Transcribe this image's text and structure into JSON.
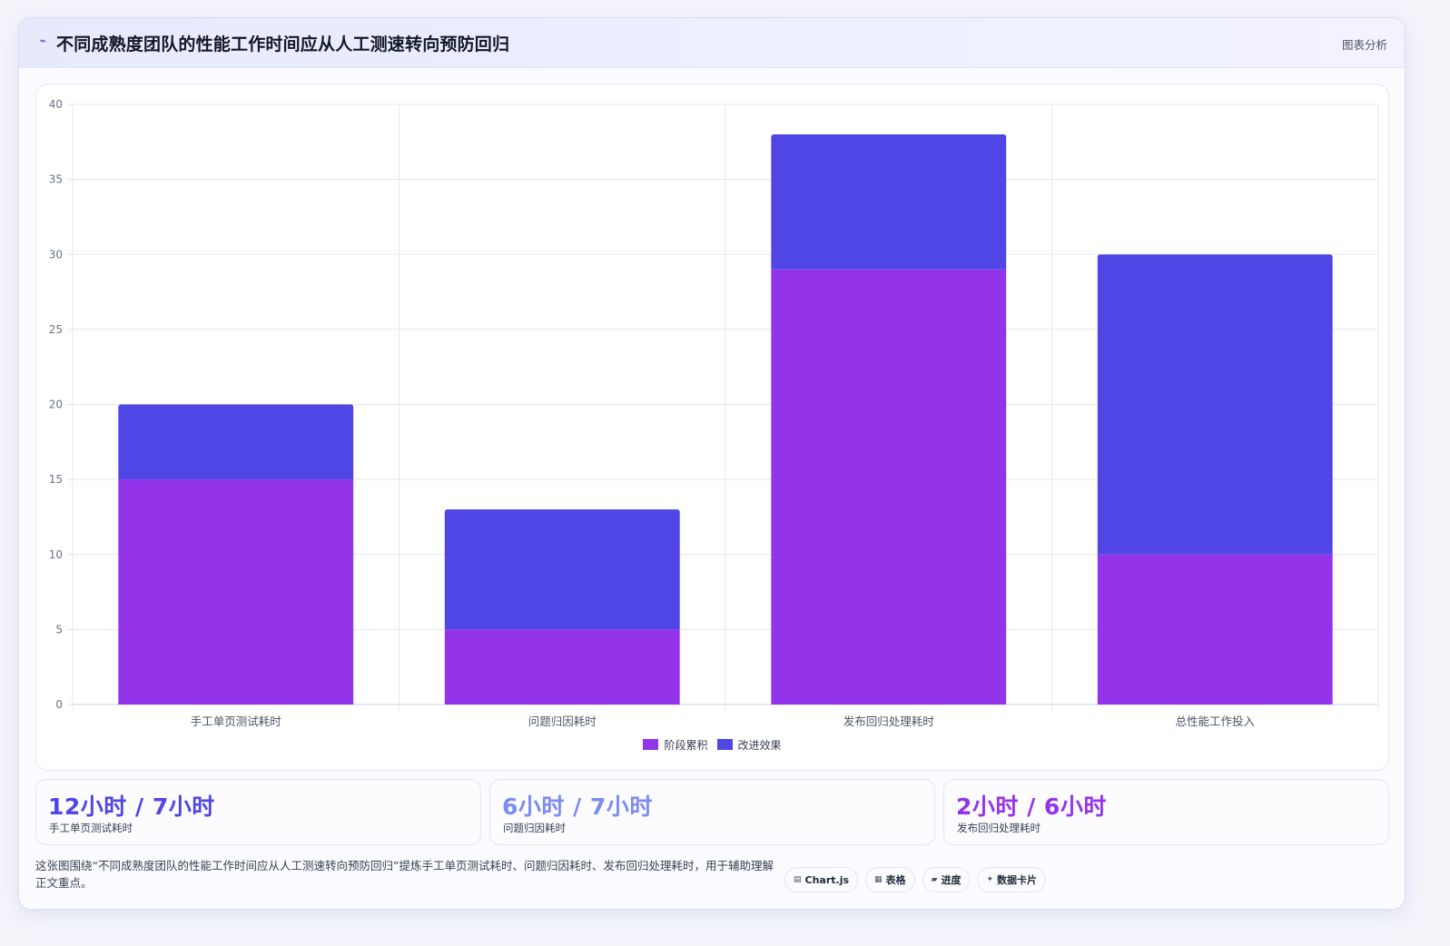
{
  "header": {
    "icon": "pulse-icon",
    "title": "不同成熟度团队的性能工作时间应从人工测速转向预防回归",
    "tag": "图表分析"
  },
  "chart_data": {
    "type": "bar",
    "stacked": true,
    "categories": [
      "手工单页测试耗时",
      "问题归因耗时",
      "发布回归处理耗时",
      "总性能工作投入"
    ],
    "series": [
      {
        "name": "阶段累积",
        "color": "#9333ea",
        "values": [
          15,
          5,
          29,
          10
        ]
      },
      {
        "name": "改进效果",
        "color": "#4f46e5",
        "values": [
          5,
          8,
          9,
          20
        ]
      }
    ],
    "ylim": [
      0,
      40
    ],
    "yticks": [
      0,
      5,
      10,
      15,
      20,
      25,
      30,
      35,
      40
    ],
    "grid": true,
    "legend": "bottom"
  },
  "stats": [
    {
      "value": "12小时 / 7小时",
      "label": "手工单页测试耗时",
      "color": "#4f46e5"
    },
    {
      "value": "6小时 / 7小时",
      "label": "问题归因耗时",
      "color": "#7c8cf0"
    },
    {
      "value": "2小时 / 6小时",
      "label": "发布回归处理耗时",
      "color": "#9333ea"
    }
  ],
  "description": "这张图围绕“不同成熟度团队的性能工作时间应从人工测速转向预防回归”提炼手工单页测试耗时、问题归因耗时、发布回归处理耗时，用于辅助理解正文重点。",
  "chips": [
    {
      "icon": "chart-icon",
      "glyph": "▤",
      "label": "Chart.js"
    },
    {
      "icon": "table-icon",
      "glyph": "▦",
      "label": "表格"
    },
    {
      "icon": "progress-icon",
      "glyph": "▰",
      "label": "进度"
    },
    {
      "icon": "sparkle-icon",
      "glyph": "✦",
      "label": "数据卡片"
    }
  ]
}
